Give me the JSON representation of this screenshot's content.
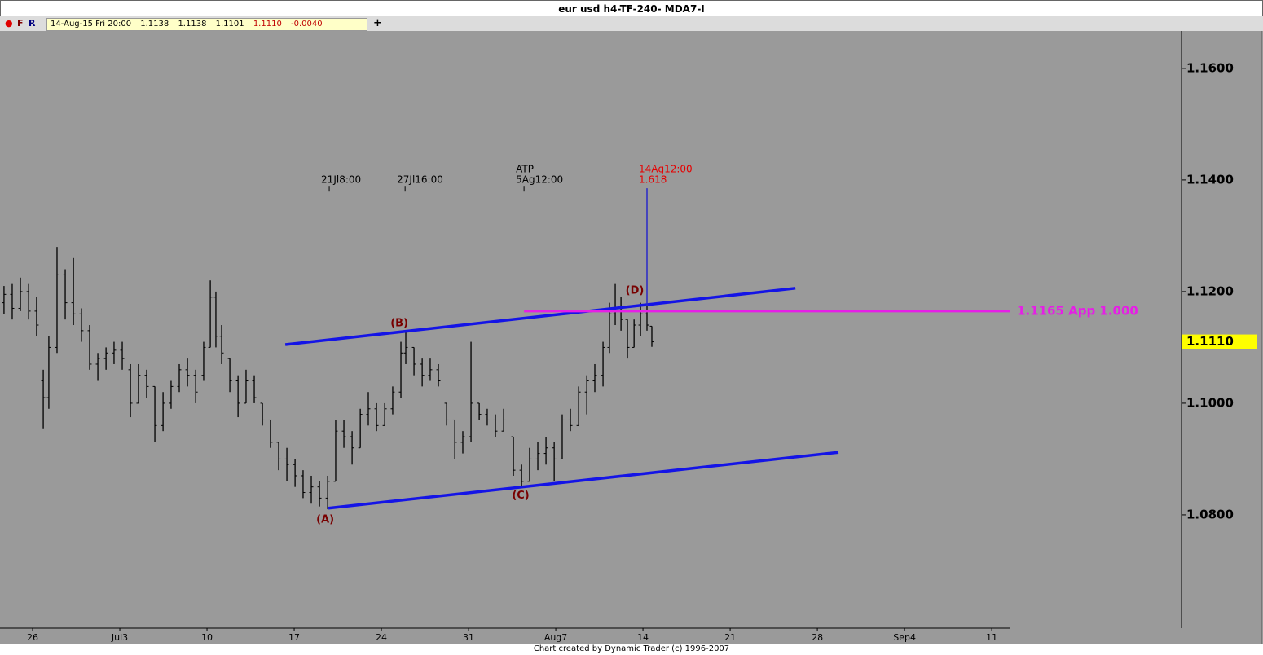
{
  "toolbar": {
    "icons": [
      "●",
      "F",
      "R"
    ],
    "date": "14-Aug-15 Fri 20:00",
    "open": "1.1138",
    "high": "1.1138",
    "low": "1.1101",
    "close": "1.1110",
    "change": "-0.0040",
    "add": "+"
  },
  "footer": "Chart created by Dynamic Trader  (c) 1996-2007",
  "chart_data": {
    "type": "ohlc",
    "title": "eur usd h4-TF-240- MDA7-I",
    "color": "#000000",
    "x": [
      -1.64,
      -1.17,
      -0.7,
      -0.23,
      0.23,
      0.61,
      0.93,
      1.4,
      1.87,
      2.34,
      2.8,
      3.27,
      3.74,
      4.21,
      4.67,
      5.14,
      5.61,
      6.07,
      6.54,
      7.01,
      7.48,
      7.94,
      8.41,
      8.88,
      9.35,
      9.81,
      10.19,
      10.51,
      10.84,
      11.31,
      11.78,
      12.24,
      12.71,
      13.18,
      13.64,
      14.11,
      14.58,
      15.05,
      15.51,
      15.98,
      16.45,
      16.92,
      17.38,
      17.85,
      18.32,
      18.79,
      19.25,
      19.72,
      20.19,
      20.65,
      21.12,
      21.4,
      21.87,
      22.34,
      22.8,
      23.27,
      23.74,
      24.21,
      24.67,
      25.14,
      25.61,
      26.07,
      26.54,
      27.01,
      27.57,
      28.04,
      28.5,
      28.97,
      29.44,
      29.91,
      30.37,
      30.84,
      31.31,
      31.78,
      32.24,
      32.71,
      33.08,
      33.41,
      33.74,
      34.11,
      34.49,
      34.86,
      35.23,
      35.51
    ],
    "open": [
      1.118,
      1.1195,
      1.117,
      1.12,
      1.1165,
      1.104,
      1.101,
      1.11,
      1.123,
      1.118,
      1.116,
      1.113,
      1.107,
      1.108,
      1.109,
      1.1095,
      1.106,
      1.1,
      1.105,
      1.103,
      1.096,
      1.1,
      1.103,
      1.106,
      1.105,
      1.105,
      1.11,
      1.119,
      1.112,
      1.108,
      1.104,
      1.1,
      1.104,
      1.1,
      1.097,
      1.093,
      1.09,
      1.089,
      1.087,
      1.084,
      1.085,
      1.083,
      1.086,
      1.095,
      1.094,
      1.092,
      1.098,
      1.099,
      1.096,
      1.099,
      1.102,
      1.109,
      1.11,
      1.107,
      1.105,
      1.106,
      1.1,
      1.097,
      1.093,
      1.094,
      1.1,
      1.098,
      1.097,
      1.095,
      1.094,
      1.088,
      1.086,
      1.09,
      1.091,
      1.092,
      1.09,
      1.097,
      1.096,
      1.102,
      1.104,
      1.105,
      1.11,
      1.116,
      1.117,
      1.115,
      1.11,
      1.114,
      1.116,
      1.1138
    ],
    "high": [
      1.121,
      1.1215,
      1.1225,
      1.1215,
      1.119,
      1.106,
      1.112,
      1.128,
      1.124,
      1.126,
      1.117,
      1.114,
      1.109,
      1.11,
      1.111,
      1.111,
      1.107,
      1.107,
      1.106,
      1.103,
      1.102,
      1.104,
      1.107,
      1.108,
      1.106,
      1.111,
      1.122,
      1.12,
      1.114,
      1.108,
      1.105,
      1.106,
      1.105,
      1.1,
      1.097,
      1.093,
      1.092,
      1.09,
      1.088,
      1.087,
      1.086,
      1.087,
      1.097,
      1.097,
      1.095,
      1.099,
      1.102,
      1.1,
      1.1,
      1.103,
      1.111,
      1.113,
      1.11,
      1.108,
      1.108,
      1.107,
      1.1,
      1.097,
      1.095,
      1.111,
      1.1,
      1.099,
      1.098,
      1.099,
      1.094,
      1.089,
      1.092,
      1.093,
      1.094,
      1.093,
      1.098,
      1.099,
      1.103,
      1.105,
      1.107,
      1.111,
      1.118,
      1.1215,
      1.119,
      1.115,
      1.115,
      1.118,
      1.1175,
      1.1138
    ],
    "low": [
      1.116,
      1.115,
      1.1165,
      1.115,
      1.112,
      1.0955,
      1.099,
      1.109,
      1.115,
      1.114,
      1.111,
      1.106,
      1.104,
      1.106,
      1.107,
      1.106,
      1.0975,
      1.1,
      1.101,
      1.093,
      1.095,
      1.099,
      1.102,
      1.103,
      1.1,
      1.104,
      1.11,
      1.11,
      1.107,
      1.102,
      1.0975,
      1.1,
      1.1,
      1.096,
      1.092,
      1.088,
      1.086,
      1.085,
      1.083,
      1.082,
      1.0815,
      1.081,
      1.086,
      1.092,
      1.089,
      1.092,
      1.096,
      1.095,
      1.096,
      1.098,
      1.101,
      1.107,
      1.105,
      1.103,
      1.104,
      1.103,
      1.096,
      1.09,
      1.091,
      1.093,
      1.097,
      1.096,
      1.094,
      1.095,
      1.087,
      1.085,
      1.086,
      1.088,
      1.089,
      1.086,
      1.09,
      1.095,
      1.096,
      1.098,
      1.102,
      1.103,
      1.109,
      1.114,
      1.113,
      1.108,
      1.11,
      1.112,
      1.113,
      1.1101
    ],
    "close": [
      1.1195,
      1.117,
      1.12,
      1.1165,
      1.114,
      1.101,
      1.11,
      1.123,
      1.118,
      1.116,
      1.113,
      1.107,
      1.108,
      1.109,
      1.1095,
      1.108,
      1.1,
      1.105,
      1.103,
      1.096,
      1.1,
      1.103,
      1.106,
      1.105,
      1.102,
      1.11,
      1.119,
      1.112,
      1.109,
      1.104,
      1.1,
      1.104,
      1.101,
      1.097,
      1.093,
      1.09,
      1.089,
      1.087,
      1.084,
      1.085,
      1.083,
      1.086,
      1.095,
      1.094,
      1.092,
      1.098,
      1.099,
      1.096,
      1.099,
      1.102,
      1.109,
      1.11,
      1.107,
      1.105,
      1.106,
      1.104,
      1.097,
      1.093,
      1.094,
      1.1,
      1.098,
      1.097,
      1.095,
      1.097,
      1.088,
      1.086,
      1.09,
      1.091,
      1.092,
      1.09,
      1.097,
      1.096,
      1.102,
      1.104,
      1.105,
      1.11,
      1.116,
      1.117,
      1.115,
      1.11,
      1.114,
      1.116,
      1.114,
      1.111
    ],
    "xlim": [
      -1.87,
      56.07
    ],
    "ylim": [
      1.0597,
      1.1667
    ],
    "xticks": [
      {
        "value": 0,
        "label": "26"
      },
      {
        "value": 5,
        "label": "Jul3"
      },
      {
        "value": 10,
        "label": "10"
      },
      {
        "value": 15,
        "label": "17"
      },
      {
        "value": 20,
        "label": "24"
      },
      {
        "value": 25,
        "label": "31"
      },
      {
        "value": 30,
        "label": "Aug7"
      },
      {
        "value": 35,
        "label": "14"
      },
      {
        "value": 40,
        "label": "21"
      },
      {
        "value": 45,
        "label": "28"
      },
      {
        "value": 50,
        "label": "Sep4"
      },
      {
        "value": 55,
        "label": "11"
      }
    ],
    "yticks": [
      {
        "value": 1.16,
        "label": "1.1600"
      },
      {
        "value": 1.14,
        "label": "1.1400"
      },
      {
        "value": 1.12,
        "label": "1.1200"
      },
      {
        "value": 1.1,
        "label": "1.1000"
      },
      {
        "value": 1.08,
        "label": "1.0800"
      }
    ],
    "trendlines": [
      {
        "color": "#1414e6",
        "x": [
          14.49,
          43.74
        ],
        "y": [
          1.1105,
          1.1206
        ]
      },
      {
        "color": "#1414e6",
        "x": [
          16.96,
          46.21
        ],
        "y": [
          1.0812,
          1.0912
        ]
      }
    ],
    "level": {
      "value": 1.1165,
      "label": "1.1165 App 1.000",
      "x_start": 28.18,
      "color": "#e61ee6"
    },
    "last_price": {
      "value": 1.111,
      "label": "1.1110",
      "color": "#ffff00"
    },
    "projection": {
      "x": 35.23,
      "y": [
        1.1174,
        1.1385
      ],
      "labels": [
        "14Ag12:00",
        "1.618"
      ],
      "color": "#2828c8",
      "label_color": "#e60000"
    },
    "time_markers": [
      {
        "x": 17.01,
        "y": 1.1385,
        "labels": [
          "21Jl8:00"
        ]
      },
      {
        "x": 21.36,
        "y": 1.1385,
        "labels": [
          "27Jl16:00"
        ]
      },
      {
        "x": 28.18,
        "y": 1.1385,
        "labels": [
          "ATP",
          "5Ag12:00"
        ]
      }
    ],
    "wave_labels": [
      {
        "text": "(A)",
        "x": 16.78,
        "y": 1.0791
      },
      {
        "text": "(B)",
        "x": 21.03,
        "y": 1.1143
      },
      {
        "text": "(C)",
        "x": 27.99,
        "y": 1.0834
      },
      {
        "text": "(D)",
        "x": 34.53,
        "y": 1.1201
      }
    ],
    "wave_color": "#780000"
  }
}
